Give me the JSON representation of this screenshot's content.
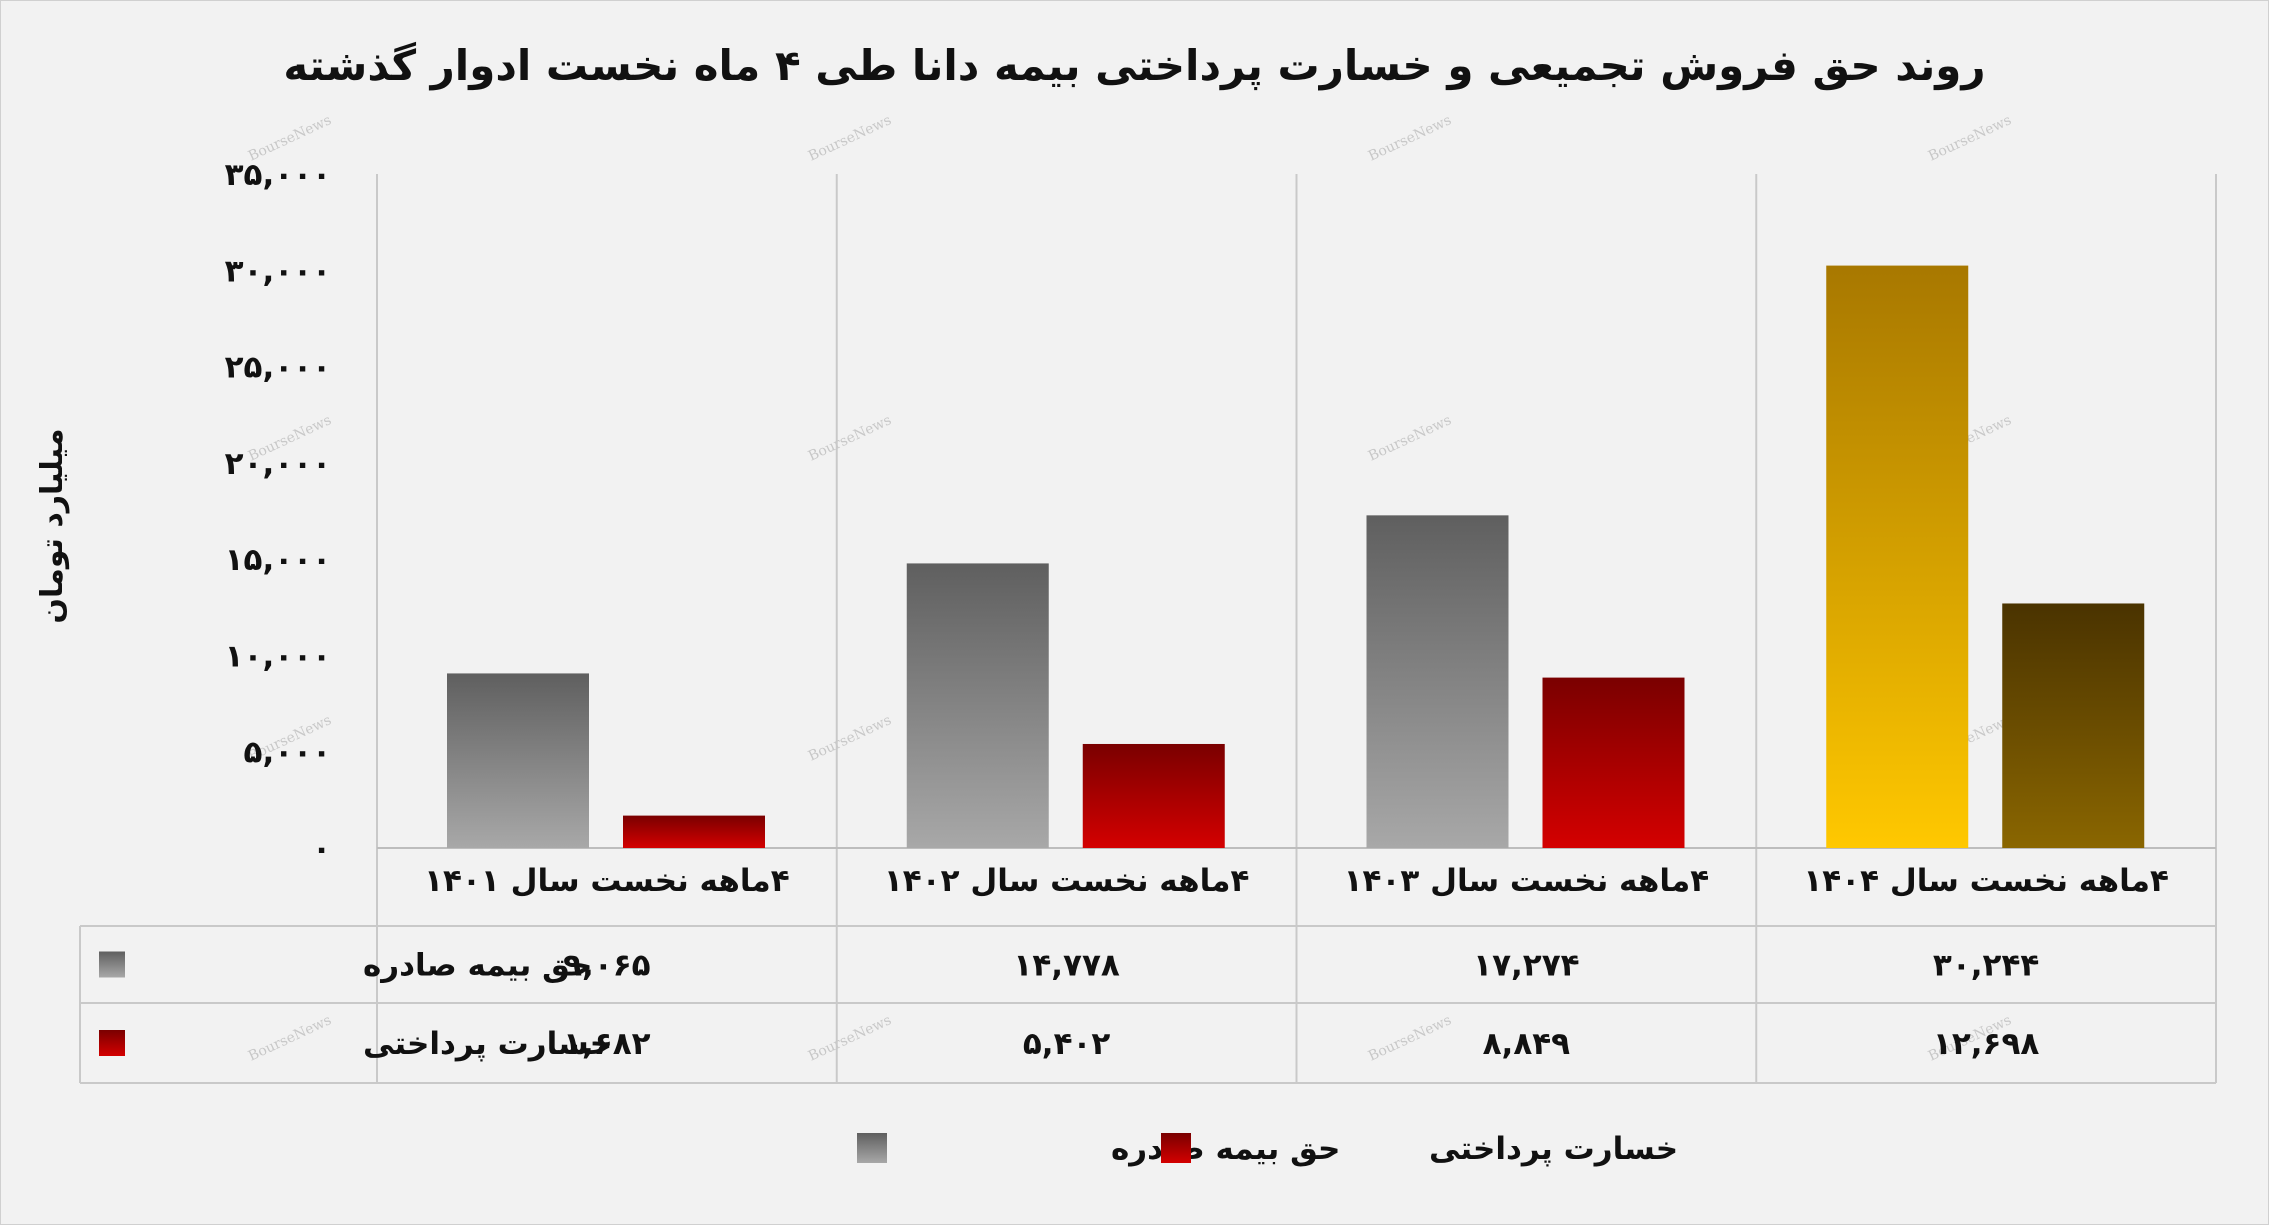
{
  "chart_data": {
    "type": "bar",
    "title": "روند حق فروش تجمیعی و خسارت پرداختی بیمه دانا طی ۴ ماه نخست ادوار گذشته",
    "ylabel": "میلیارد تومان",
    "xlabel": "",
    "ylim": [
      0,
      35000
    ],
    "yticks": [
      0,
      5000,
      10000,
      15000,
      20000,
      25000,
      30000,
      35000
    ],
    "ytick_labels": [
      "۰",
      "۵,۰۰۰",
      "۱۰,۰۰۰",
      "۱۵,۰۰۰",
      "۲۰,۰۰۰",
      "۲۵,۰۰۰",
      "۳۰,۰۰۰",
      "۳۵,۰۰۰"
    ],
    "categories": [
      "۴ماهه نخست سال ۱۴۰۱",
      "۴ماهه نخست سال ۱۴۰۲",
      "۴ماهه نخست سال ۱۴۰۳",
      "۴ماهه نخست سال ۱۴۰۴"
    ],
    "series": [
      {
        "name": "حق بیمه صادره",
        "color": "#7f7f7f",
        "values": [
          9065,
          14778,
          17274,
          30244
        ],
        "labels": [
          "۹,۰۶۵",
          "۱۴,۷۷۸",
          "۱۷,۲۷۴",
          "۳۰,۲۴۴"
        ]
      },
      {
        "name": "خسارت پرداختی",
        "color": "#c00000",
        "values": [
          1682,
          5402,
          8849,
          12698
        ],
        "labels": [
          "۱,۶۸۲",
          "۵,۴۰۲",
          "۸,۸۴۹",
          "۱۲,۶۹۸"
        ]
      }
    ],
    "highlight_colors": [
      "#ffc000",
      "#7a5a00"
    ],
    "grid": false,
    "legend": "bottom-center",
    "data_table": true,
    "watermark": "BourseNews"
  }
}
